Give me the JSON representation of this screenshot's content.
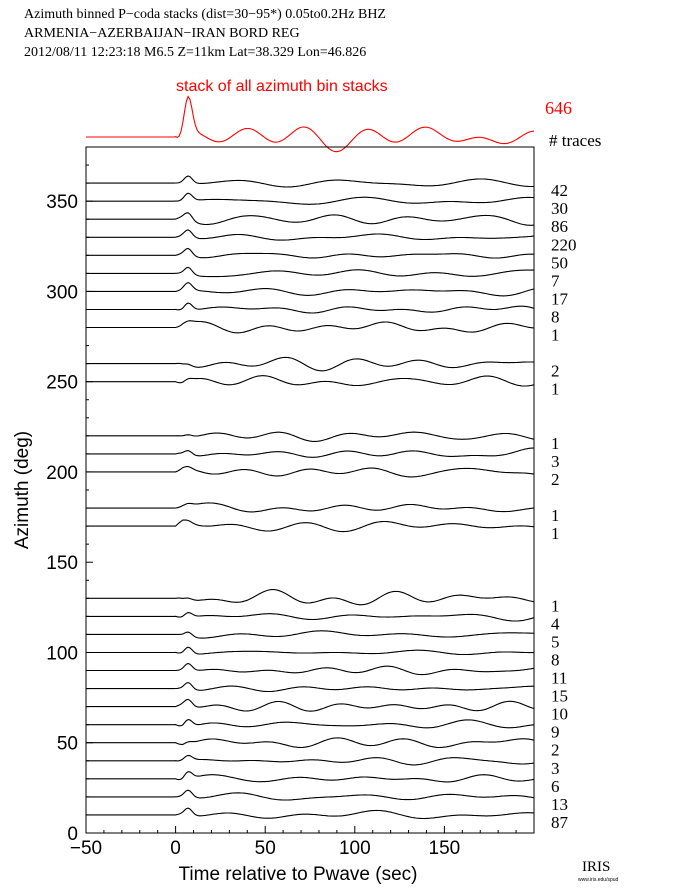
{
  "header": {
    "line1": "Azimuth binned P−coda stacks (dist=30−95*)  0.05to0.2Hz  BHZ",
    "line2": "ARMENIA−AZERBAIJAN−IRAN BORD REG",
    "line3": "2012/08/11  12:23:18  M6.5  Z=11km Lat=38.329 Lon=46.826"
  },
  "stack_label": "stack of all azimuth bin stacks",
  "stack_count": "646",
  "traces_header": "# traces",
  "logo": {
    "text": "IRIS",
    "subtext": "www.iris.edu/spud"
  },
  "colors": {
    "stack": "#ff0000",
    "traces": "#000000"
  },
  "chart_data": {
    "type": "line",
    "title": "",
    "xlabel": "Time relative to Pwave (sec)",
    "ylabel": "Azimuth (deg)",
    "xlim": [
      -50,
      200
    ],
    "ylim": [
      0,
      380
    ],
    "xticks": [
      -50,
      0,
      50,
      100,
      150
    ],
    "yticks": [
      0,
      50,
      100,
      150,
      200,
      250,
      300,
      350
    ],
    "grid": false,
    "stack_trace": {
      "name": "stack of all azimuth bin stacks",
      "count": 646
    },
    "series": [
      {
        "azimuth": 360,
        "count": 42
      },
      {
        "azimuth": 350,
        "count": 30
      },
      {
        "azimuth": 340,
        "count": 86
      },
      {
        "azimuth": 330,
        "count": 220
      },
      {
        "azimuth": 320,
        "count": 50
      },
      {
        "azimuth": 310,
        "count": 7
      },
      {
        "azimuth": 300,
        "count": 17
      },
      {
        "azimuth": 290,
        "count": 8
      },
      {
        "azimuth": 280,
        "count": 1
      },
      {
        "azimuth": 260,
        "count": 2
      },
      {
        "azimuth": 250,
        "count": 1
      },
      {
        "azimuth": 220,
        "count": 1
      },
      {
        "azimuth": 210,
        "count": 3
      },
      {
        "azimuth": 200,
        "count": 2
      },
      {
        "azimuth": 180,
        "count": 1
      },
      {
        "azimuth": 170,
        "count": 1
      },
      {
        "azimuth": 130,
        "count": 1
      },
      {
        "azimuth": 120,
        "count": 4
      },
      {
        "azimuth": 110,
        "count": 5
      },
      {
        "azimuth": 100,
        "count": 8
      },
      {
        "azimuth": 90,
        "count": 11
      },
      {
        "azimuth": 80,
        "count": 15
      },
      {
        "azimuth": 70,
        "count": 10
      },
      {
        "azimuth": 60,
        "count": 9
      },
      {
        "azimuth": 50,
        "count": 2
      },
      {
        "azimuth": 40,
        "count": 3
      },
      {
        "azimuth": 30,
        "count": 6
      },
      {
        "azimuth": 20,
        "count": 13
      },
      {
        "azimuth": 10,
        "count": 87
      }
    ]
  }
}
